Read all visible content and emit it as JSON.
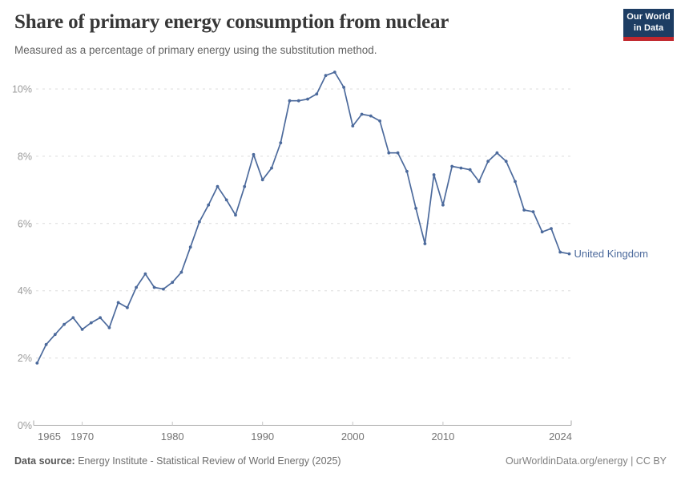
{
  "header": {
    "title": "Share of primary energy consumption from nuclear",
    "subtitle": "Measured as a percentage of primary energy using the substitution method.",
    "logo_line1": "Our World",
    "logo_line2": "in Data",
    "logo_bg_color": "#1d3d63",
    "logo_accent_color": "#c1272d"
  },
  "chart_data": {
    "type": "line",
    "title": "Share of primary energy consumption from nuclear",
    "xlabel": "",
    "ylabel": "",
    "y_format": "percent",
    "xlim": [
      1965,
      2024
    ],
    "ylim": [
      0,
      10.5
    ],
    "grid": "horizontal-dashed",
    "x_ticks": [
      1965,
      1970,
      1980,
      1990,
      2000,
      2010,
      2024
    ],
    "y_ticks": [
      0,
      2,
      4,
      6,
      8,
      10
    ],
    "legend_position": "end-of-line-label",
    "years": [
      1965,
      1966,
      1967,
      1968,
      1969,
      1970,
      1971,
      1972,
      1973,
      1974,
      1975,
      1976,
      1977,
      1978,
      1979,
      1980,
      1981,
      1982,
      1983,
      1984,
      1985,
      1986,
      1987,
      1988,
      1989,
      1990,
      1991,
      1992,
      1993,
      1994,
      1995,
      1996,
      1997,
      1998,
      1999,
      2000,
      2001,
      2002,
      2003,
      2004,
      2005,
      2006,
      2007,
      2008,
      2009,
      2010,
      2011,
      2012,
      2013,
      2014,
      2015,
      2016,
      2017,
      2018,
      2019,
      2020,
      2021,
      2022,
      2023,
      2024
    ],
    "series": [
      {
        "name": "United Kingdom",
        "color": "#4c6a9c",
        "values": [
          1.85,
          2.4,
          2.7,
          3.0,
          3.2,
          2.85,
          3.05,
          3.2,
          2.9,
          3.65,
          3.5,
          4.1,
          4.5,
          4.1,
          4.05,
          4.25,
          4.55,
          5.3,
          6.05,
          6.55,
          7.1,
          6.7,
          6.25,
          7.1,
          8.05,
          7.3,
          7.65,
          8.4,
          9.65,
          9.65,
          9.7,
          9.85,
          10.4,
          10.5,
          10.05,
          8.9,
          9.25,
          9.2,
          9.05,
          8.1,
          8.1,
          7.55,
          6.45,
          5.4,
          7.45,
          6.55,
          7.7,
          7.65,
          7.6,
          7.25,
          7.85,
          8.1,
          7.85,
          7.25,
          6.4,
          6.35,
          5.75,
          5.85,
          5.15,
          5.1
        ]
      }
    ],
    "axis_colors": {
      "gridline": "#dcdcdc",
      "axis_line": "#a9a9a9",
      "tick": "#c6c6c6",
      "y_label": "#9b9b9b",
      "x_label": "#747474"
    }
  },
  "footer": {
    "source_label": "Data source:",
    "source_text": " Energy Institute - Statistical Review of World Energy (2025)",
    "right_text": "OurWorldinData.org/energy | CC BY"
  }
}
